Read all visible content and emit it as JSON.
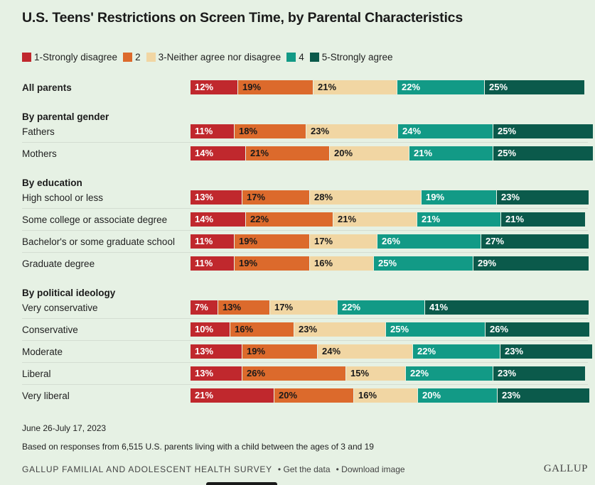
{
  "title": "U.S. Teens' Restrictions on Screen Time, by Parental Characteristics",
  "colors": [
    "#c0282d",
    "#dc6a2c",
    "#f1d6a3",
    "#129a86",
    "#0b5a4b"
  ],
  "text_colors": [
    "#ffffff",
    "#1a1a1a",
    "#1a1a1a",
    "#ffffff",
    "#ffffff"
  ],
  "legend": [
    "1-Strongly disagree",
    "2",
    "3-Neither agree nor disagree",
    "4",
    "5-Strongly agree"
  ],
  "chart_data": {
    "type": "bar",
    "orientation": "horizontal",
    "stacked": true,
    "title": "U.S. Teens' Restrictions on Screen Time, by Parental Characteristics",
    "series_names": [
      "1-Strongly disagree",
      "2",
      "3-Neither agree nor disagree",
      "4",
      "5-Strongly agree"
    ],
    "groups": [
      {
        "label": "",
        "rows": [
          {
            "label": "All parents",
            "bold": true,
            "values": [
              12,
              19,
              21,
              22,
              25
            ]
          }
        ]
      },
      {
        "label": "By parental gender",
        "rows": [
          {
            "label": "Fathers",
            "values": [
              11,
              18,
              23,
              24,
              25
            ]
          },
          {
            "label": "Mothers",
            "values": [
              14,
              21,
              20,
              21,
              25
            ]
          }
        ]
      },
      {
        "label": "By education",
        "rows": [
          {
            "label": "High school or less",
            "values": [
              13,
              17,
              28,
              19,
              23
            ]
          },
          {
            "label": "Some college or associate degree",
            "values": [
              14,
              22,
              21,
              21,
              21
            ]
          },
          {
            "label": "Bachelor's or some graduate school",
            "values": [
              11,
              19,
              17,
              26,
              27
            ]
          },
          {
            "label": "Graduate degree",
            "values": [
              11,
              19,
              16,
              25,
              29
            ]
          }
        ]
      },
      {
        "label": "By political ideology",
        "rows": [
          {
            "label": "Very conservative",
            "values": [
              7,
              13,
              17,
              22,
              41
            ]
          },
          {
            "label": "Conservative",
            "values": [
              10,
              16,
              23,
              25,
              26
            ]
          },
          {
            "label": "Moderate",
            "values": [
              13,
              19,
              24,
              22,
              23
            ]
          },
          {
            "label": "Liberal",
            "values": [
              13,
              26,
              15,
              22,
              23
            ]
          },
          {
            "label": "Very liberal",
            "values": [
              21,
              20,
              16,
              20,
              23
            ]
          }
        ]
      }
    ]
  },
  "footnotes": {
    "date": "June 26-July 17, 2023",
    "basis": "Based on responses from 6,515 U.S. parents living with a child between the ages of 3 and 19"
  },
  "source": {
    "name": "Gallup Familial and Adolescent Health Survey",
    "get_data": "• Get the data",
    "download": "• Download image"
  },
  "logo": "GALLUP"
}
